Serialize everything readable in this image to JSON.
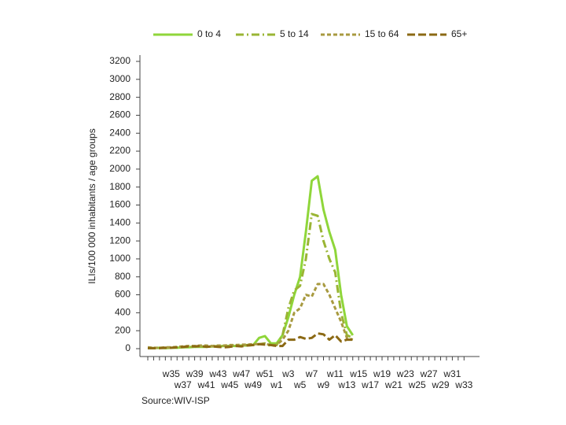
{
  "chart_data": {
    "type": "line",
    "y_label": "ILIs/100 000 inhabitants / age groups",
    "source": "Source:WIV-ISP",
    "categories": [
      null,
      null,
      null,
      null,
      "w35",
      null,
      "w37",
      null,
      "w39",
      null,
      "w41",
      null,
      "w43",
      null,
      "w45",
      null,
      "w47",
      null,
      "w49",
      null,
      "w51",
      null,
      "w1",
      null,
      "w3",
      null,
      "w5",
      null,
      "w7",
      null,
      "w9",
      null,
      "w11",
      null,
      "w13",
      null,
      "w15",
      null,
      "w17",
      null,
      "w19",
      null,
      "w21",
      null,
      "w23",
      null,
      "w25",
      null,
      "w27",
      null,
      "w29",
      null,
      "w31",
      null,
      "w33"
    ],
    "series": [
      {
        "name": "0 to 4",
        "color": "#8fd63a",
        "dash": "none",
        "values": [
          5,
          5,
          10,
          5,
          10,
          10,
          15,
          15,
          20,
          20,
          20,
          25,
          25,
          30,
          30,
          30,
          35,
          35,
          40,
          120,
          140,
          60,
          60,
          150,
          350,
          600,
          800,
          1300,
          1870,
          1920,
          1550,
          1300,
          1100,
          600,
          250,
          150,
          null,
          null,
          null,
          null,
          null,
          null,
          null,
          null,
          null,
          null,
          null,
          null,
          null,
          null,
          null,
          null,
          null,
          null,
          null
        ]
      },
      {
        "name": "5 to 14",
        "color": "#9ab534",
        "dash": "10,4,2,4",
        "values": [
          10,
          5,
          10,
          10,
          10,
          15,
          15,
          20,
          20,
          25,
          25,
          25,
          30,
          30,
          30,
          35,
          35,
          40,
          45,
          50,
          60,
          30,
          40,
          150,
          450,
          650,
          700,
          1000,
          1500,
          1480,
          1200,
          1000,
          850,
          400,
          150,
          120,
          null,
          null,
          null,
          null,
          null,
          null,
          null,
          null,
          null,
          null,
          null,
          null,
          null,
          null,
          null,
          null,
          null,
          null,
          null
        ]
      },
      {
        "name": "15 to 64",
        "color": "#a89a40",
        "dash": "5,3",
        "values": [
          15,
          10,
          10,
          15,
          15,
          20,
          25,
          30,
          30,
          35,
          35,
          30,
          35,
          35,
          40,
          40,
          45,
          45,
          50,
          50,
          55,
          40,
          40,
          100,
          200,
          400,
          450,
          600,
          580,
          720,
          720,
          600,
          450,
          300,
          120,
          100,
          null,
          null,
          null,
          null,
          null,
          null,
          null,
          null,
          null,
          null,
          null,
          null,
          null,
          null,
          null,
          null,
          null,
          null,
          null
        ]
      },
      {
        "name": "65+",
        "color": "#8b6914",
        "dash": "10,4",
        "values": [
          5,
          5,
          5,
          10,
          10,
          15,
          20,
          25,
          25,
          30,
          20,
          25,
          20,
          15,
          20,
          30,
          25,
          35,
          40,
          50,
          45,
          40,
          30,
          30,
          100,
          100,
          130,
          110,
          120,
          170,
          160,
          100,
          150,
          80,
          100,
          100,
          null,
          null,
          null,
          null,
          null,
          null,
          null,
          null,
          null,
          null,
          null,
          null,
          null,
          null,
          null,
          null,
          null,
          null,
          null
        ]
      }
    ],
    "ylim": [
      0,
      3200
    ],
    "yticks": [
      0,
      200,
      400,
      600,
      800,
      1000,
      1200,
      1400,
      1600,
      1800,
      2000,
      2200,
      2400,
      2600,
      2800,
      3000,
      3200
    ]
  }
}
